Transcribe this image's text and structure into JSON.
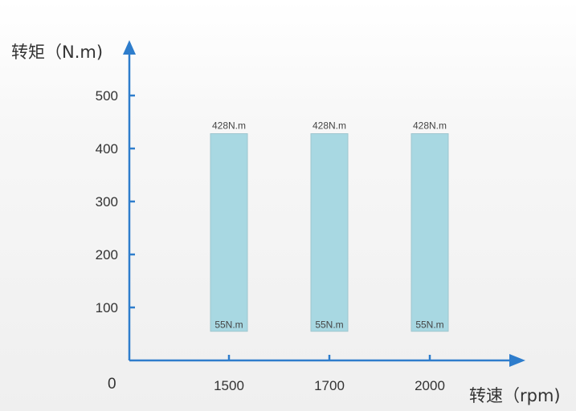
{
  "chart_data": {
    "type": "bar",
    "title": "",
    "ylabel": "转矩（N.m)",
    "xlabel": "转速（rpm)",
    "origin_label": "0",
    "categories": [
      "1500",
      "1700",
      "2000"
    ],
    "series": [
      {
        "low": [
          55,
          55,
          55
        ],
        "high": [
          428,
          428,
          428
        ],
        "low_labels": [
          "55N.m",
          "55N.m",
          "55N.m"
        ],
        "high_labels": [
          "428N.m",
          "428N.m",
          "428N.m"
        ]
      }
    ],
    "yticks": [
      100,
      200,
      300,
      400,
      500
    ],
    "ylim": [
      0,
      550
    ],
    "grid": false,
    "colors": {
      "bar": "#a8d8e2",
      "axis": "#2e7dcc"
    }
  }
}
